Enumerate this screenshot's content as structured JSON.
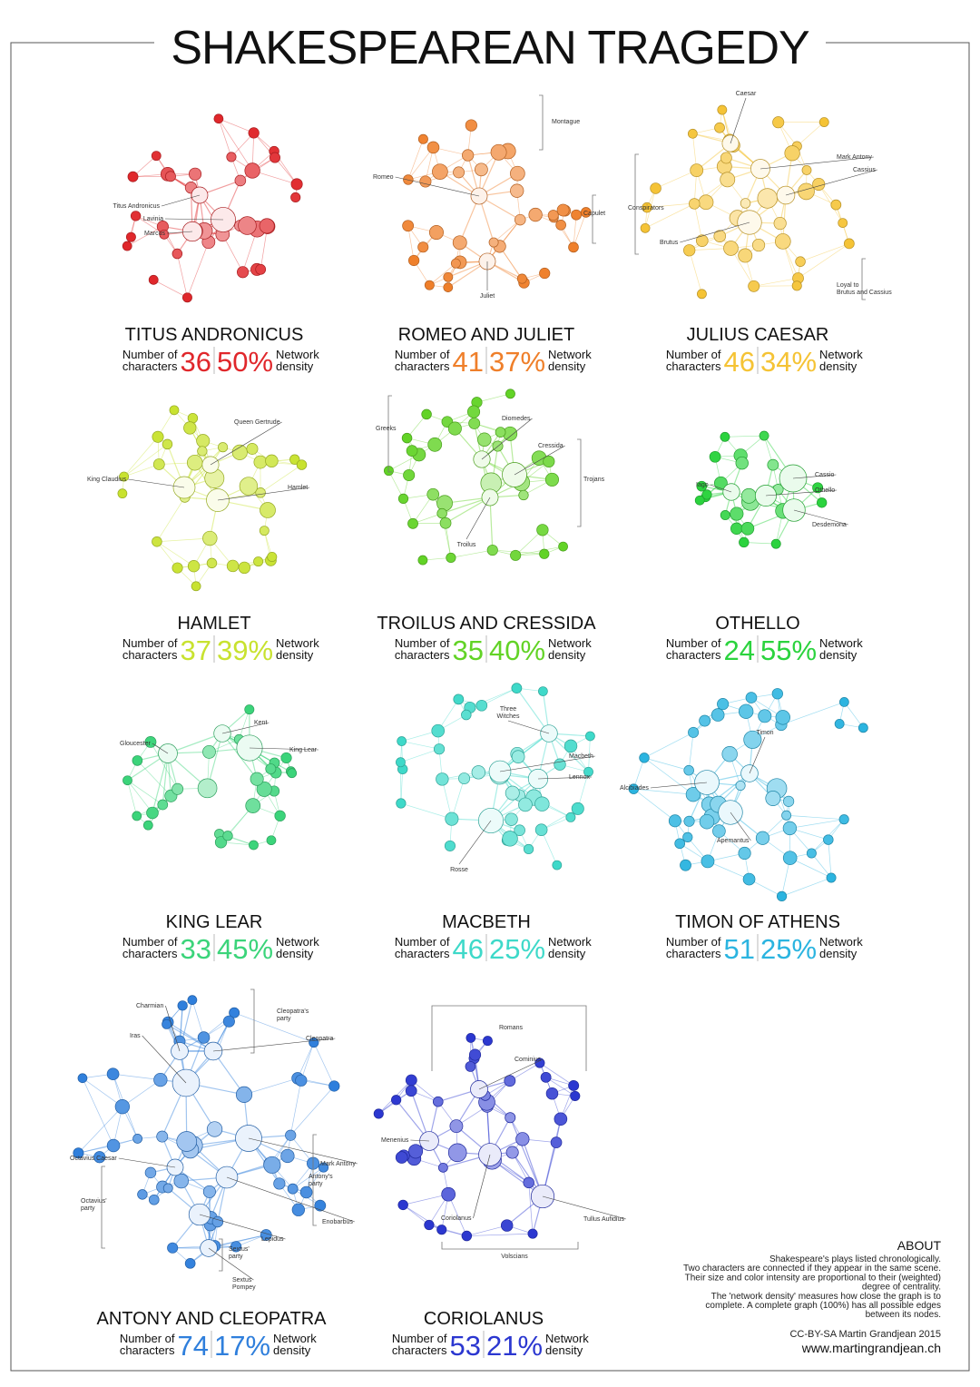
{
  "title": "SHAKESPEAREAN TRAGEDY",
  "number_label": [
    "Number of",
    "characters"
  ],
  "density_label": [
    "Network",
    "density"
  ],
  "plays": [
    {
      "name": "TITUS ANDRONICUS",
      "characters": 36,
      "density": "50%",
      "color": "#e0272b",
      "labels": [
        [
          "Titus Andronicus"
        ],
        [
          "Lavinia"
        ],
        [
          "Marcus"
        ]
      ]
    },
    {
      "name": "ROMEO AND JULIET",
      "characters": 41,
      "density": "37%",
      "color": "#ef7f2a",
      "labels": [
        [
          "Romeo"
        ],
        [
          "Juliet"
        ],
        [
          "Montague"
        ],
        [
          "Capulet"
        ]
      ]
    },
    {
      "name": "JULIUS CAESAR",
      "characters": 46,
      "density": "34%",
      "color": "#f5c335",
      "labels": [
        [
          "Caesar"
        ],
        [
          "Mark Antony"
        ],
        [
          "Cassius"
        ],
        [
          "Brutus"
        ],
        [
          "Conspirators"
        ],
        [
          "Loyal to",
          "Brutus and Cassius"
        ]
      ]
    },
    {
      "name": "HAMLET",
      "characters": 37,
      "density": "39%",
      "color": "#c8e22f",
      "labels": [
        [
          "Queen Gertrude"
        ],
        [
          "King Claudius"
        ],
        [
          "Hamlet"
        ]
      ]
    },
    {
      "name": "TROILUS AND CRESSIDA",
      "characters": 35,
      "density": "40%",
      "color": "#62d326",
      "labels": [
        [
          "Diomedes"
        ],
        [
          "Cressida"
        ],
        [
          "Troilus"
        ],
        [
          "Greeks"
        ],
        [
          "Trojans"
        ]
      ]
    },
    {
      "name": "OTHELLO",
      "characters": 24,
      "density": "55%",
      "color": "#2bd33e",
      "labels": [
        [
          "Iago"
        ],
        [
          "Cassio"
        ],
        [
          "Othello"
        ],
        [
          "Desdemona"
        ]
      ]
    },
    {
      "name": "KING LEAR",
      "characters": 33,
      "density": "45%",
      "color": "#3bd47a",
      "labels": [
        [
          "Kent"
        ],
        [
          "Gloucester"
        ],
        [
          "King Lear"
        ]
      ]
    },
    {
      "name": "MACBETH",
      "characters": 46,
      "density": "25%",
      "color": "#3ed9c9",
      "labels": [
        [
          "Three",
          "Witches"
        ],
        [
          "Macbeth"
        ],
        [
          "Lennox"
        ],
        [
          "Rosse"
        ]
      ]
    },
    {
      "name": "TIMON OF ATHENS",
      "characters": 51,
      "density": "25%",
      "color": "#2bb4e0",
      "labels": [
        [
          "Timon"
        ],
        [
          "Alcibiades"
        ],
        [
          "Apemantus"
        ]
      ]
    },
    {
      "name": "ANTONY AND CLEOPATRA",
      "characters": 74,
      "density": "17%",
      "color": "#2f7fdc",
      "labels": [
        [
          "Charmian"
        ],
        [
          "Iras"
        ],
        [
          "Cleopatra's",
          "party"
        ],
        [
          "Cleopatra"
        ],
        [
          "Octavius Caesar"
        ],
        [
          "Octavius'",
          "party"
        ],
        [
          "Mark Antony"
        ],
        [
          "Antony's",
          "party"
        ],
        [
          "Enobarbus"
        ],
        [
          "Lepidus"
        ],
        [
          "Sextus'",
          "party"
        ],
        [
          "Sextus",
          "Pompey"
        ]
      ]
    },
    {
      "name": "CORIOLANUS",
      "characters": 53,
      "density": "21%",
      "color": "#2b37d0",
      "labels": [
        [
          "Romans"
        ],
        [
          "Cominius"
        ],
        [
          "Menenius"
        ],
        [
          "Coriolanus"
        ],
        [
          "Tullus Aufidius"
        ],
        [
          "Volscians"
        ]
      ]
    }
  ],
  "about": {
    "heading": "ABOUT",
    "lines": [
      "Shakespeare's plays listed chronologically.",
      "Two characters are connected if they appear in the same scene.",
      "Their size and color intensity are proportional to their (weighted)",
      "degree of centrality.",
      "The 'network density' measures how close the graph is to",
      "complete. A complete graph (100%) has all possible edges",
      "between its nodes."
    ],
    "credit": "CC-BY-SA Martin Grandjean 2015",
    "website": "www.martingrandjean.ch"
  }
}
